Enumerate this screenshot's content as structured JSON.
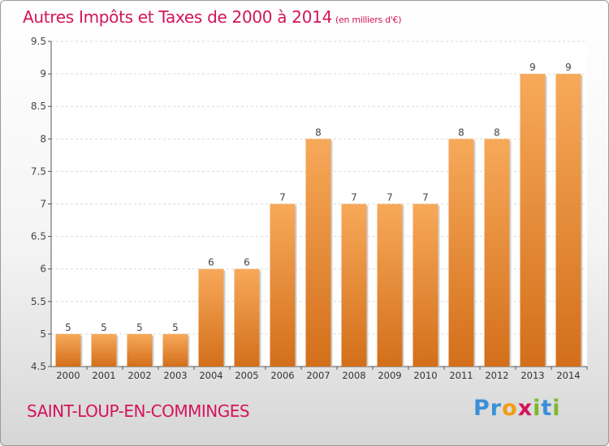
{
  "title": "Autres Impôts et Taxes de 2000 à 2014",
  "title_unit": "(en milliers d'€)",
  "commune": "SAINT-LOUP-EN-COMMINGES",
  "logo": {
    "text": "Proxiti",
    "letters": [
      {
        "ch": "P",
        "color": "#3a8fd8"
      },
      {
        "ch": "r",
        "color": "#3a8fd8"
      },
      {
        "ch": "o",
        "color": "#f39c12"
      },
      {
        "ch": "x",
        "color": "#d4145a"
      },
      {
        "ch": "i",
        "color": "#7cb82f"
      },
      {
        "ch": "t",
        "color": "#3a8fd8"
      },
      {
        "ch": "i",
        "color": "#7cb82f"
      }
    ]
  },
  "colors": {
    "bar_top": "#f7a95a",
    "bar_bottom": "#d36f1a",
    "title": "#d4145a",
    "grid": "#d9d9d9",
    "axis": "#555555"
  },
  "chart_data": {
    "type": "bar",
    "categories": [
      "2000",
      "2001",
      "2002",
      "2003",
      "2004",
      "2005",
      "2006",
      "2007",
      "2008",
      "2009",
      "2010",
      "2011",
      "2012",
      "2013",
      "2014"
    ],
    "values": [
      5,
      5,
      5,
      5,
      6,
      6,
      7,
      8,
      7,
      7,
      7,
      8,
      8,
      9,
      9
    ],
    "data_labels": [
      "5",
      "5",
      "5",
      "5",
      "6",
      "6",
      "7",
      "8",
      "7",
      "7",
      "7",
      "8",
      "8",
      "9",
      "9"
    ],
    "ylim": [
      4.5,
      9.5
    ],
    "yticks": [
      4.5,
      5,
      5.5,
      6,
      6.5,
      7,
      7.5,
      8,
      8.5,
      9,
      9.5
    ],
    "ytick_labels": [
      "4.5",
      "5",
      "5.5",
      "6",
      "6.5",
      "7",
      "7.5",
      "8",
      "8.5",
      "9",
      "9.5"
    ],
    "grid": true,
    "xlabel": "",
    "ylabel": ""
  }
}
